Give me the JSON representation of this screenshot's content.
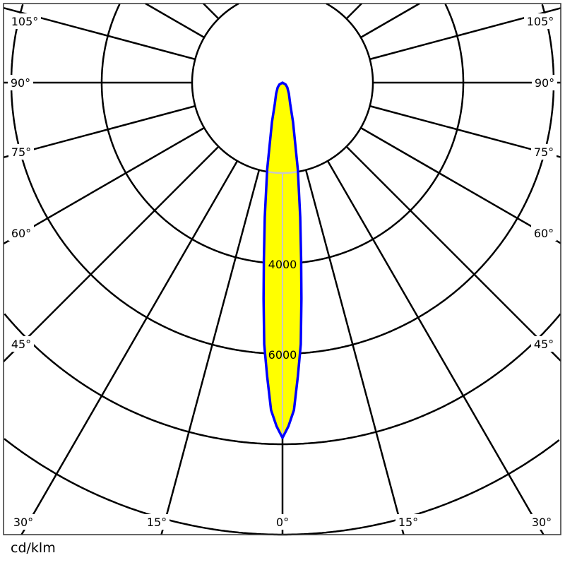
{
  "chart_data": {
    "type": "polar",
    "unit_label": "cd/klm",
    "radial_ticks": [
      2000,
      4000,
      6000,
      8000,
      10000
    ],
    "radial_tick_labels": [
      "4000",
      "6000"
    ],
    "angle_step_deg": 15,
    "angle_labels": [
      "0°",
      "15°",
      "30°",
      "45°",
      "60°",
      "75°",
      "90°",
      "105°"
    ],
    "series": [
      {
        "angles_deg": [
          0,
          1,
          2,
          3,
          4,
          5,
          6,
          7.5,
          10,
          15,
          20,
          30,
          45,
          60,
          90
        ],
        "values": [
          7860,
          7600,
          7250,
          6500,
          5800,
          4800,
          3950,
          3000,
          1950,
          900,
          500,
          280,
          150,
          80,
          0
        ],
        "fill": "#ffff00",
        "stroke": "#0000ff"
      }
    ],
    "symmetric": true
  }
}
